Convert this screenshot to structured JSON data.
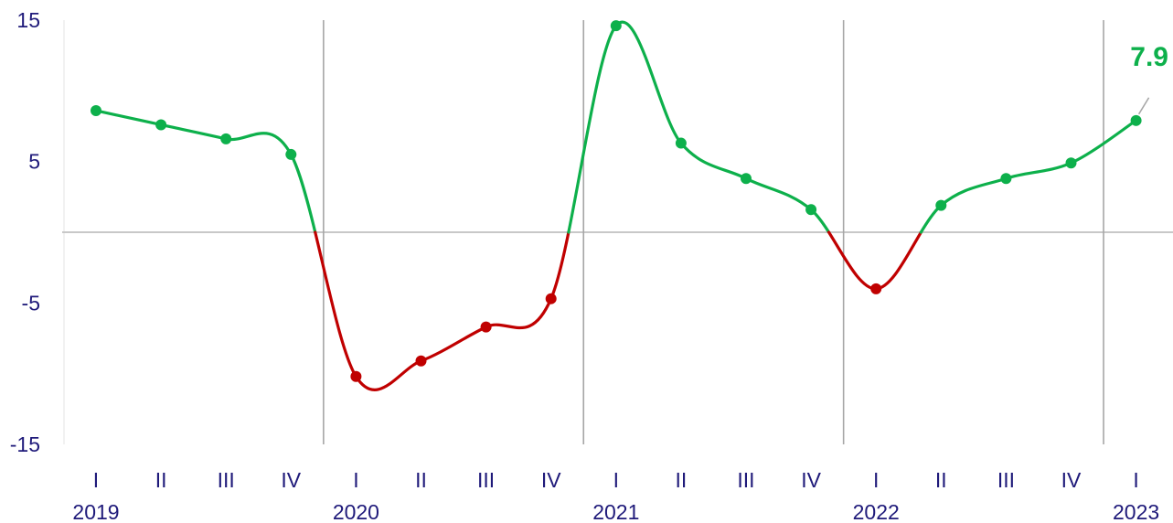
{
  "chart_data": {
    "type": "line",
    "title": "",
    "xlabel": "",
    "ylabel": "",
    "ylim": [
      -15,
      15
    ],
    "yticks": [
      15,
      5,
      -5,
      -15
    ],
    "years": [
      "2019",
      "2020",
      "2021",
      "2022",
      "2023"
    ],
    "categories": [
      "I",
      "II",
      "III",
      "IV",
      "I",
      "II",
      "III",
      "IV",
      "I",
      "II",
      "III",
      "IV",
      "I",
      "II",
      "III",
      "IV",
      "I"
    ],
    "x": [
      "2019 I",
      "2019 II",
      "2019 III",
      "2019 IV",
      "2020 I",
      "2020 II",
      "2020 III",
      "2020 IV",
      "2021 I",
      "2021 II",
      "2021 III",
      "2021 IV",
      "2022 I",
      "2022 II",
      "2022 III",
      "2022 IV",
      "2023 I"
    ],
    "values": [
      8.6,
      7.6,
      6.6,
      5.5,
      -10.2,
      -9.1,
      -6.7,
      -4.7,
      14.6,
      6.3,
      3.8,
      1.6,
      -4.0,
      1.9,
      3.8,
      4.9,
      7.9
    ],
    "last_value_label": "7.9",
    "grid": {
      "zero_line": true,
      "year_dividers": true
    },
    "colors": {
      "positive": "#0db04b",
      "negative": "#c00000",
      "text": "#1f1a7a",
      "grid": "#c8c8c8",
      "divider": "#a6a6a6",
      "label_leader": "#a6a6a6"
    }
  }
}
